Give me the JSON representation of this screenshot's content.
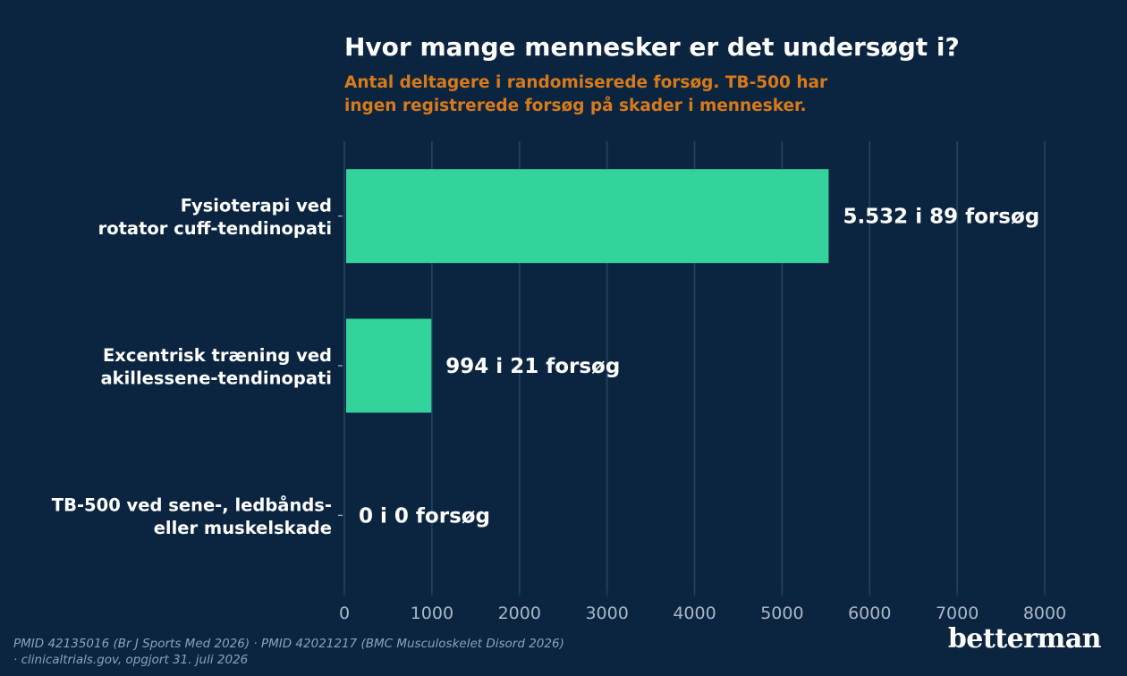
{
  "title": "Hvor mange mennesker er det undersøgt i?",
  "subtitle": {
    "line1": "Antal deltagere i randomiserede forsøg. TB-500 har",
    "line2": "ingen registrerede forsøg på skader i mennesker."
  },
  "chart_data": {
    "type": "bar",
    "orientation": "horizontal",
    "categories": [
      [
        "Fysioterapi ved",
        "rotator cuff-tendinopati"
      ],
      [
        "Excentrisk træning ved",
        "akillessene-tendinopati"
      ],
      [
        "TB-500 ved sene-, ledbånds-",
        "eller muskelskade"
      ]
    ],
    "values": [
      5532,
      994,
      0
    ],
    "data_labels": [
      "5.532 i 89 forsøg",
      "994 i 21 forsøg",
      "0 i 0 forsøg"
    ],
    "x_ticks": [
      "0",
      "1000",
      "2000",
      "3000",
      "4000",
      "5000",
      "6000",
      "7000",
      "8000"
    ],
    "xlim": [
      0,
      8000
    ],
    "xlabel": "",
    "ylabel": "",
    "grid": "vertical",
    "colors": {
      "background": "#0b2541",
      "bar": "#34d39b",
      "grid": "#244466",
      "tick_text": "#a9b8c8",
      "label_text": "#ffffff"
    }
  },
  "footer": {
    "line1": "PMID 42135016 (Br J Sports Med 2026) · PMID 42021217 (BMC Musculoskelet Disord 2026)",
    "line2": "· clinicaltrials.gov, opgjort 31. juli 2026"
  },
  "brand": "betterman"
}
